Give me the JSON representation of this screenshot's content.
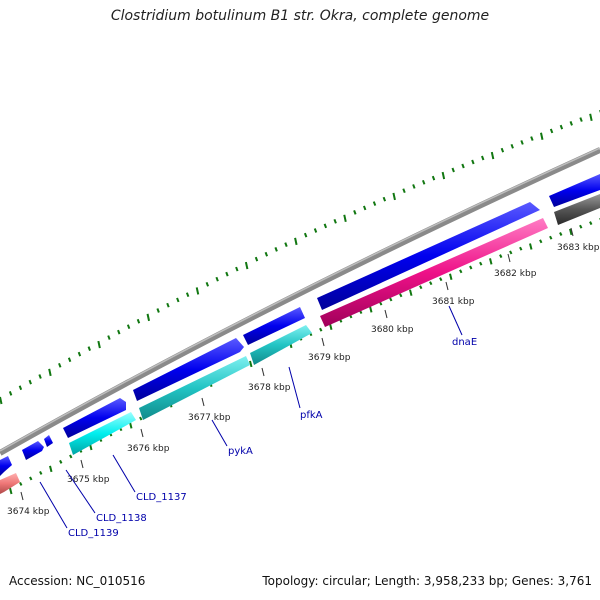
{
  "title": "Clostridium botulinum B1 str. Okra, complete genome",
  "footer": {
    "accession": "Accession: NC_010516",
    "topology": "Topology: circular; Length: 3,958,233 bp; Genes: 3,761"
  },
  "ruler": {
    "unit": "kbp",
    "ticks": [
      {
        "value": 3674,
        "label": "3674 kbp"
      },
      {
        "value": 3675,
        "label": "3675 kbp"
      },
      {
        "value": 3676,
        "label": "3676 kbp"
      },
      {
        "value": 3677,
        "label": "3677 kbp"
      },
      {
        "value": 3678,
        "label": "3678 kbp"
      },
      {
        "value": 3679,
        "label": "3679 kbp"
      },
      {
        "value": 3680,
        "label": "3680 kbp"
      },
      {
        "value": 3681,
        "label": "3681 kbp"
      },
      {
        "value": 3682,
        "label": "3682 kbp"
      },
      {
        "value": 3683,
        "label": "3683 kbp"
      }
    ]
  },
  "gene_labels": [
    {
      "name": "CLD_1139"
    },
    {
      "name": "CLD_1138"
    },
    {
      "name": "CLD_1137"
    },
    {
      "name": "pykA"
    },
    {
      "name": "pfkA"
    },
    {
      "name": "dnaE"
    }
  ],
  "colors": {
    "forward_strand": "#0000ee",
    "reverse_strand_cyan": "#22cccc",
    "reverse_strand_pink": "#ee1188",
    "reverse_strand_salmon": "#ee7777",
    "reverse_strand_gray": "#555555",
    "backbone": "#888888",
    "gc_ticks": "#117711",
    "label_text": "#0000aa"
  }
}
